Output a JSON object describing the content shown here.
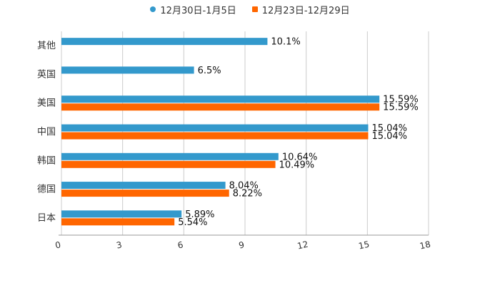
{
  "chart_data": {
    "type": "bar",
    "orientation": "horizontal",
    "title": "",
    "xlabel": "",
    "ylabel": "",
    "xlim": [
      0,
      18
    ],
    "ticks": [
      0,
      3,
      6,
      9,
      12,
      15,
      18
    ],
    "tick_labels": [
      "0",
      "3",
      "6",
      "9",
      "12",
      "15",
      "18"
    ],
    "grid": true,
    "legend_position": "top-center",
    "categories": [
      "其他",
      "英国",
      "美国",
      "中国",
      "韩国",
      "德国",
      "日本"
    ],
    "series": [
      {
        "name": "12月30日-1月5日",
        "color": "#3399cc",
        "marker": "circle",
        "values": [
          10.1,
          6.5,
          15.59,
          15.04,
          10.64,
          8.04,
          5.89
        ],
        "labels": [
          "10.1%",
          "6.5%",
          "15.59%",
          "15.04%",
          "10.64%",
          "8.04%",
          "5.89%"
        ]
      },
      {
        "name": "12月23日-12月29日",
        "color": "#ff6600",
        "marker": "square",
        "values": [
          null,
          null,
          15.59,
          15.04,
          10.49,
          8.22,
          5.54
        ],
        "labels": [
          "",
          "",
          "15.59%",
          "15.04%",
          "10.49%",
          "8.22%",
          "5.54%"
        ]
      }
    ]
  }
}
